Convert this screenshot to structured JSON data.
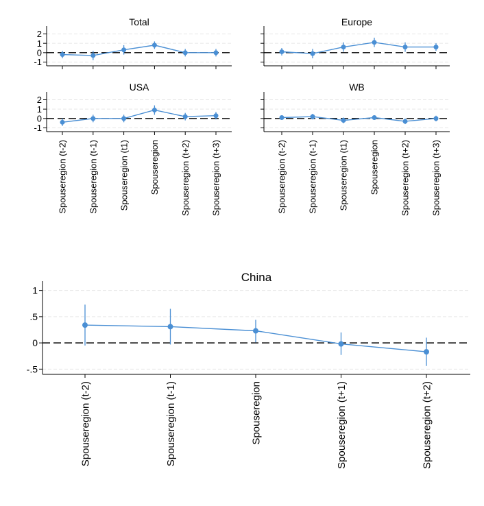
{
  "colors": {
    "series": "#4a8fd4",
    "grid": "#e6e6e6",
    "axis": "#000000",
    "ref_line": "#000000"
  },
  "chart_data": [
    {
      "type": "line",
      "title": "Total",
      "categories": [
        "Spouseregion (t-2)",
        "Spouseregion (t-1)",
        "Spouseregion (t1)",
        "Spouseregion",
        "Spouseregion (t+2)",
        "Spouseregion (t+3)"
      ],
      "estimates": [
        -0.2,
        -0.3,
        0.3,
        0.8,
        0.0,
        0.0
      ],
      "ci_low": [
        -0.6,
        -0.8,
        -0.2,
        0.4,
        -0.4,
        -0.4
      ],
      "ci_high": [
        0.2,
        0.2,
        0.8,
        1.2,
        0.4,
        0.4
      ],
      "ylim": [
        -1.4,
        2.4
      ],
      "yticks": [
        -1,
        0,
        1,
        2
      ],
      "ytick_labels": [
        "-1",
        "0",
        "1",
        "2"
      ],
      "show_xtick_labels": false,
      "reference_line": 0,
      "grid": true
    },
    {
      "type": "line",
      "title": "Europe",
      "categories": [
        "Spouseregion (t-2)",
        "Spouseregion (t-1)",
        "Spouseregion (t1)",
        "Spouseregion",
        "Spouseregion (t+2)",
        "Spouseregion (t+3)"
      ],
      "estimates": [
        0.1,
        -0.1,
        0.6,
        1.1,
        0.6,
        0.6
      ],
      "ci_low": [
        -0.3,
        -0.6,
        0.1,
        0.6,
        0.1,
        0.2
      ],
      "ci_high": [
        0.5,
        0.4,
        1.1,
        1.6,
        1.1,
        1.0
      ],
      "ylim": [
        -1.4,
        2.4
      ],
      "yticks": [
        -1,
        0,
        1,
        2
      ],
      "ytick_labels": [
        "",
        "",
        "",
        ""
      ],
      "show_xtick_labels": false,
      "reference_line": 0,
      "grid": true
    },
    {
      "type": "line",
      "title": "USA",
      "categories": [
        "Spouseregion (t-2)",
        "Spouseregion (t-1)",
        "Spouseregion (t1)",
        "Spouseregion",
        "Spouseregion (t+2)",
        "Spouseregion (t+3)"
      ],
      "estimates": [
        -0.4,
        0.0,
        0.0,
        0.9,
        0.2,
        0.3
      ],
      "ci_low": [
        -0.8,
        -0.4,
        -0.4,
        0.4,
        -0.2,
        -0.1
      ],
      "ci_high": [
        0.0,
        0.4,
        0.4,
        1.4,
        0.6,
        0.7
      ],
      "ylim": [
        -1.4,
        2.4
      ],
      "yticks": [
        -1,
        0,
        1,
        2
      ],
      "ytick_labels": [
        "-1",
        "0",
        "1",
        "2"
      ],
      "show_xtick_labels": true,
      "reference_line": 0,
      "grid": true
    },
    {
      "type": "line",
      "title": "WB",
      "categories": [
        "Spouseregion (t-2)",
        "Spouseregion (t-1)",
        "Spouseregion (t1)",
        "Spouseregion",
        "Spouseregion (t+2)",
        "Spouseregion (t+3)"
      ],
      "estimates": [
        0.1,
        0.2,
        -0.2,
        0.1,
        -0.3,
        0.0
      ],
      "ci_low": [
        -0.1,
        -0.1,
        -0.5,
        -0.1,
        -0.6,
        -0.3
      ],
      "ci_high": [
        0.3,
        0.5,
        0.1,
        0.3,
        0.0,
        0.3
      ],
      "ylim": [
        -1.4,
        2.4
      ],
      "yticks": [
        -1,
        0,
        1,
        2
      ],
      "ytick_labels": [
        "",
        "",
        "",
        ""
      ],
      "show_xtick_labels": true,
      "reference_line": 0,
      "grid": true
    },
    {
      "type": "line",
      "title": "China",
      "categories": [
        "Spouseregion (t-2)",
        "Spouseregion (t-1)",
        "Spouseregion",
        "Spouseregion (t+1)",
        "Spouseregion (t+2)"
      ],
      "estimates": [
        0.34,
        0.31,
        0.23,
        -0.02,
        -0.17
      ],
      "ci_low": [
        -0.05,
        -0.03,
        0.01,
        -0.23,
        -0.44
      ],
      "ci_high": [
        0.73,
        0.65,
        0.44,
        0.2,
        0.1
      ],
      "ylim": [
        -0.6,
        1.1
      ],
      "yticks": [
        -0.5,
        0,
        0.5,
        1
      ],
      "ytick_labels": [
        "-.5",
        "0",
        ".5",
        "1"
      ],
      "show_xtick_labels": true,
      "reference_line": 0,
      "grid": true
    }
  ]
}
